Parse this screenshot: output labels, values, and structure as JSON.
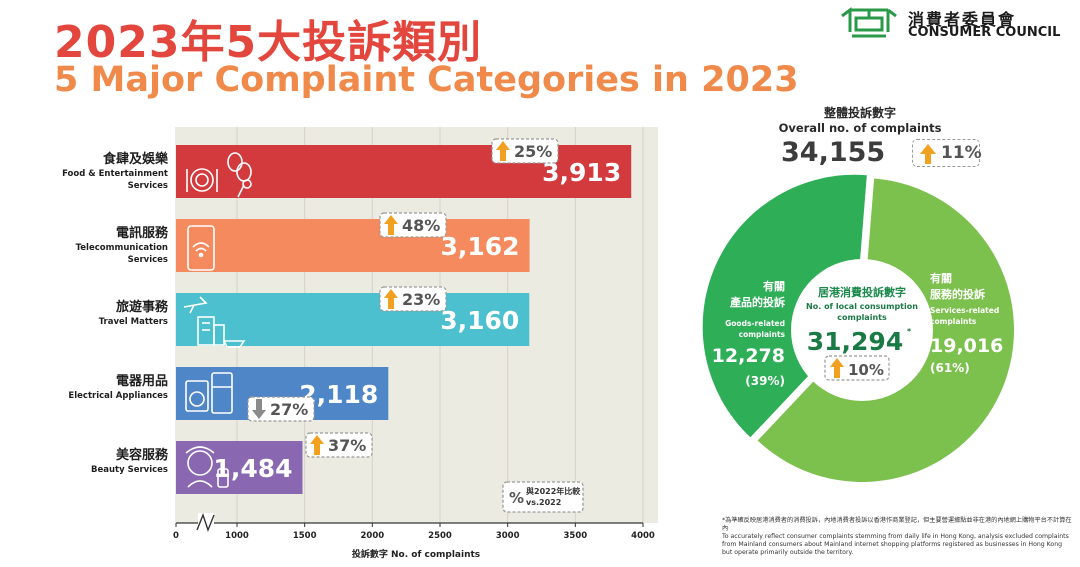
{
  "header": {
    "title_zh": "2023年5大投訴類別",
    "title_en": "5 Major Complaint Categories in 2023"
  },
  "logo": {
    "name_zh": "消費者委員會",
    "name_en": "CONSUMER COUNCIL",
    "icon": "consumer-council-logo-icon",
    "color": "#2a9a4a"
  },
  "chart_data": [
    {
      "type": "bar",
      "orientation": "horizontal",
      "categories": [
        {
          "zh": "食肆及娛樂",
          "en": [
            "Food & Entertainment",
            "Services"
          ],
          "icon": "dining-entertainment-icon"
        },
        {
          "zh": "電訊服務",
          "en": [
            "Telecommunication",
            "Services"
          ],
          "icon": "phone-wifi-icon"
        },
        {
          "zh": "旅遊事務",
          "en": [
            "Travel Matters"
          ],
          "icon": "travel-icon"
        },
        {
          "zh": "電器用品",
          "en": [
            "Electrical Appliances"
          ],
          "icon": "appliances-icon"
        },
        {
          "zh": "美容服務",
          "en": [
            "Beauty Services"
          ],
          "icon": "beauty-icon"
        }
      ],
      "values": [
        3913,
        3162,
        3160,
        2118,
        1484
      ],
      "value_labels": [
        "3,913",
        "3,162",
        "3,160",
        "2,118",
        "1,484"
      ],
      "change_vs_2022": [
        {
          "label": "25%",
          "direction": "up"
        },
        {
          "label": "48%",
          "direction": "up"
        },
        {
          "label": "23%",
          "direction": "up"
        },
        {
          "label": "27%",
          "direction": "down"
        },
        {
          "label": "37%",
          "direction": "up"
        }
      ],
      "colors": [
        "#d33a3d",
        "#f58a5e",
        "#4cc0cf",
        "#4f86c8",
        "#8a67b1"
      ],
      "xlim": [
        0,
        4000
      ],
      "axis_break": true,
      "xticks": [
        "0",
        "1000",
        "1500",
        "2000",
        "2500",
        "3000",
        "3500",
        "4000"
      ],
      "xtick_values": [
        0,
        1000,
        1500,
        2000,
        2500,
        3000,
        3500,
        4000
      ],
      "xlabel": "投訴數字 No. of complaints",
      "legend": {
        "symbol": "%",
        "text_zh": "與2022年比較",
        "text_en": "vs.2022",
        "position": "bottom-right"
      },
      "grid": "vertical",
      "plot_background": "#ecebe2"
    },
    {
      "type": "pie",
      "style": "donut",
      "slices": [
        {
          "zh": "有關服務的投訴",
          "en": [
            "Services-related",
            "complaints"
          ],
          "value": 19016,
          "value_label": "19,016",
          "percent_label": "(61%)",
          "color": "#7cc04e"
        },
        {
          "zh": "有關產品的投訴",
          "en": [
            "Goods-related",
            "complaints"
          ],
          "value": 12278,
          "value_label": "12,278",
          "percent_label": "(39%)",
          "color": "#2fae58"
        }
      ],
      "center": {
        "zh": "居港消費投訴數字",
        "en": [
          "No. of local consumption",
          "complaints"
        ],
        "value": 31294,
        "value_label": "31,294",
        "marker": "*",
        "change": {
          "label": "10%",
          "direction": "up"
        }
      },
      "overall": {
        "zh": "整體投訴數字",
        "en": "Overall no. of complaints",
        "value": 34155,
        "value_label": "34,155",
        "change": {
          "label": "11%",
          "direction": "up"
        }
      }
    }
  ],
  "footnote": {
    "zh": "*為準確反映居港消費者的消費投訴，內地消費者投訴以香港作商業登記，但主要營運據點並非在港的內地網上購物平台不計算在內",
    "en": "To accurately reflect consumer complaints stemming from daily life in Hong Kong, analysis excluded complaints from Mainland consumers about Mainland internet shopping platforms registered as businesses in Hong Kong but operate primarily outside the territory."
  },
  "colors": {
    "title_zh": "#e2463c",
    "title_en": "#f08a4b",
    "arrow_up": "#f2a020",
    "arrow_down": "#8a8a8a",
    "pct_text": "#555555"
  }
}
